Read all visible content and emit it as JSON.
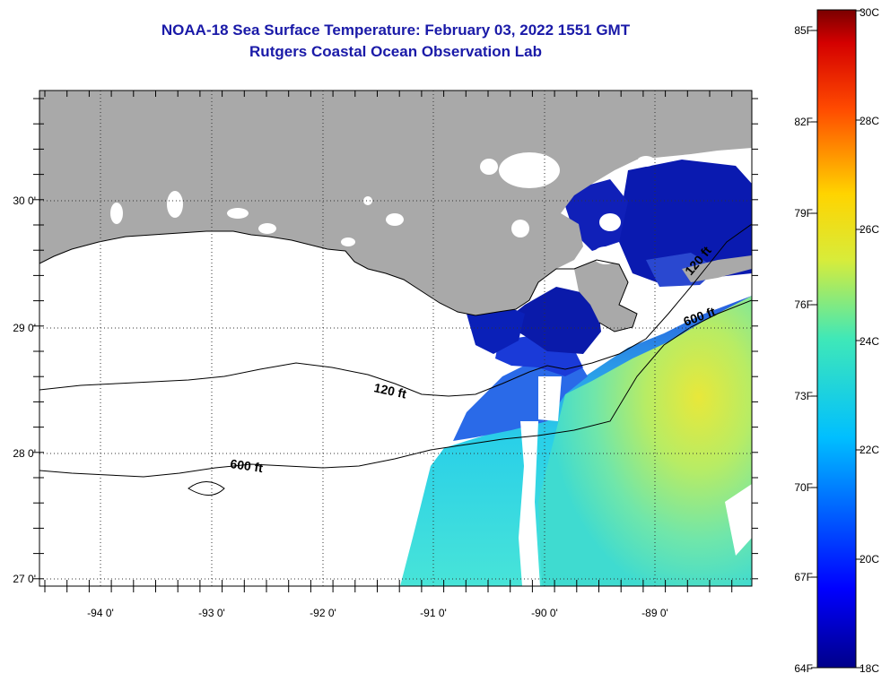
{
  "header": {
    "title": "NOAA-18 Sea Surface Temperature:  February 03, 2022 1551 GMT",
    "subtitle": "Rutgers Coastal Ocean Observation Lab"
  },
  "map": {
    "lon_labels": [
      "-94 0'",
      "-93 0'",
      "-92 0'",
      "-91 0'",
      "-90 0'",
      "-89 0'"
    ],
    "lat_labels": [
      "30 0'",
      "29 0'",
      "28 0'",
      "27 0'"
    ],
    "contour_labels": [
      "120 ft",
      "600 ft",
      "600 ft",
      "120 ft"
    ],
    "colors": {
      "land": "#a9a9a9",
      "water_nodata": "#ffffff",
      "coastline": "#000000"
    }
  },
  "colorbar": {
    "fahrenheit_labels": [
      "85F",
      "82F",
      "79F",
      "76F",
      "73F",
      "70F",
      "67F",
      "64F"
    ],
    "celsius_labels": [
      "30C",
      "28C",
      "26C",
      "24C",
      "22C",
      "20C",
      "18C"
    ],
    "colormap": "jet"
  }
}
